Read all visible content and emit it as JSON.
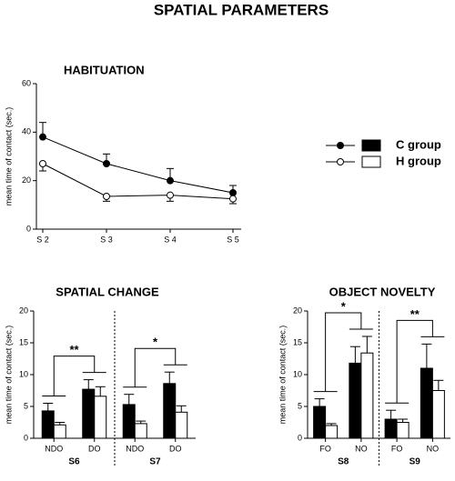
{
  "title": "SPATIAL PARAMETERS",
  "chart_data": [
    {
      "type": "line",
      "title": "HABITUATION",
      "y_label": "mean time of contact (sec.)",
      "categories": [
        "S 2",
        "S 3",
        "S 4",
        "S 5"
      ],
      "ylim": [
        0,
        60
      ],
      "yticks": [
        0,
        20,
        40,
        60
      ],
      "series": [
        {
          "name": "C group",
          "color": "#000000",
          "values": [
            38,
            27,
            20,
            15
          ],
          "errors": [
            6,
            4,
            5,
            3
          ]
        },
        {
          "name": "H group",
          "color": "#ffffff",
          "values": [
            27,
            13.5,
            14,
            12.5
          ],
          "errors": [
            3,
            2,
            2.5,
            2
          ]
        }
      ]
    },
    {
      "type": "bar",
      "title": "SPATIAL CHANGE",
      "y_label": "mean time of contact (sec.)",
      "categories": [
        "NDO",
        "DO",
        "NDO",
        "DO"
      ],
      "groups": [
        "S6",
        "S7"
      ],
      "annotations": [
        "**",
        "*"
      ],
      "ylim": [
        0,
        20
      ],
      "yticks": [
        0,
        5,
        10,
        15,
        20
      ],
      "series": [
        {
          "color": "#000000",
          "values": [
            4.3,
            7.7,
            5.3,
            8.6
          ],
          "errors": [
            1.2,
            1.5,
            1.6,
            1.8
          ]
        },
        {
          "color": "#ffffff",
          "values": [
            2.1,
            6.6,
            2.3,
            4.1
          ],
          "errors": [
            0.4,
            1.5,
            0.4,
            1.0
          ]
        }
      ]
    },
    {
      "type": "bar",
      "title": "OBJECT NOVELTY",
      "y_label": "mean time of contact (sec.)",
      "categories": [
        "FO",
        "NO",
        "FO",
        "NO"
      ],
      "groups": [
        "S8",
        "S9"
      ],
      "annotations": [
        "*",
        "**"
      ],
      "ylim": [
        0,
        20
      ],
      "yticks": [
        0,
        5,
        10,
        15,
        20
      ],
      "series": [
        {
          "color": "#000000",
          "values": [
            5.0,
            11.8,
            3.0,
            11.0
          ],
          "errors": [
            1.2,
            2.6,
            1.4,
            3.8
          ]
        },
        {
          "color": "#ffffff",
          "values": [
            2.0,
            13.4,
            2.5,
            7.5
          ],
          "errors": [
            0.3,
            2.6,
            0.5,
            1.6
          ]
        }
      ]
    }
  ]
}
